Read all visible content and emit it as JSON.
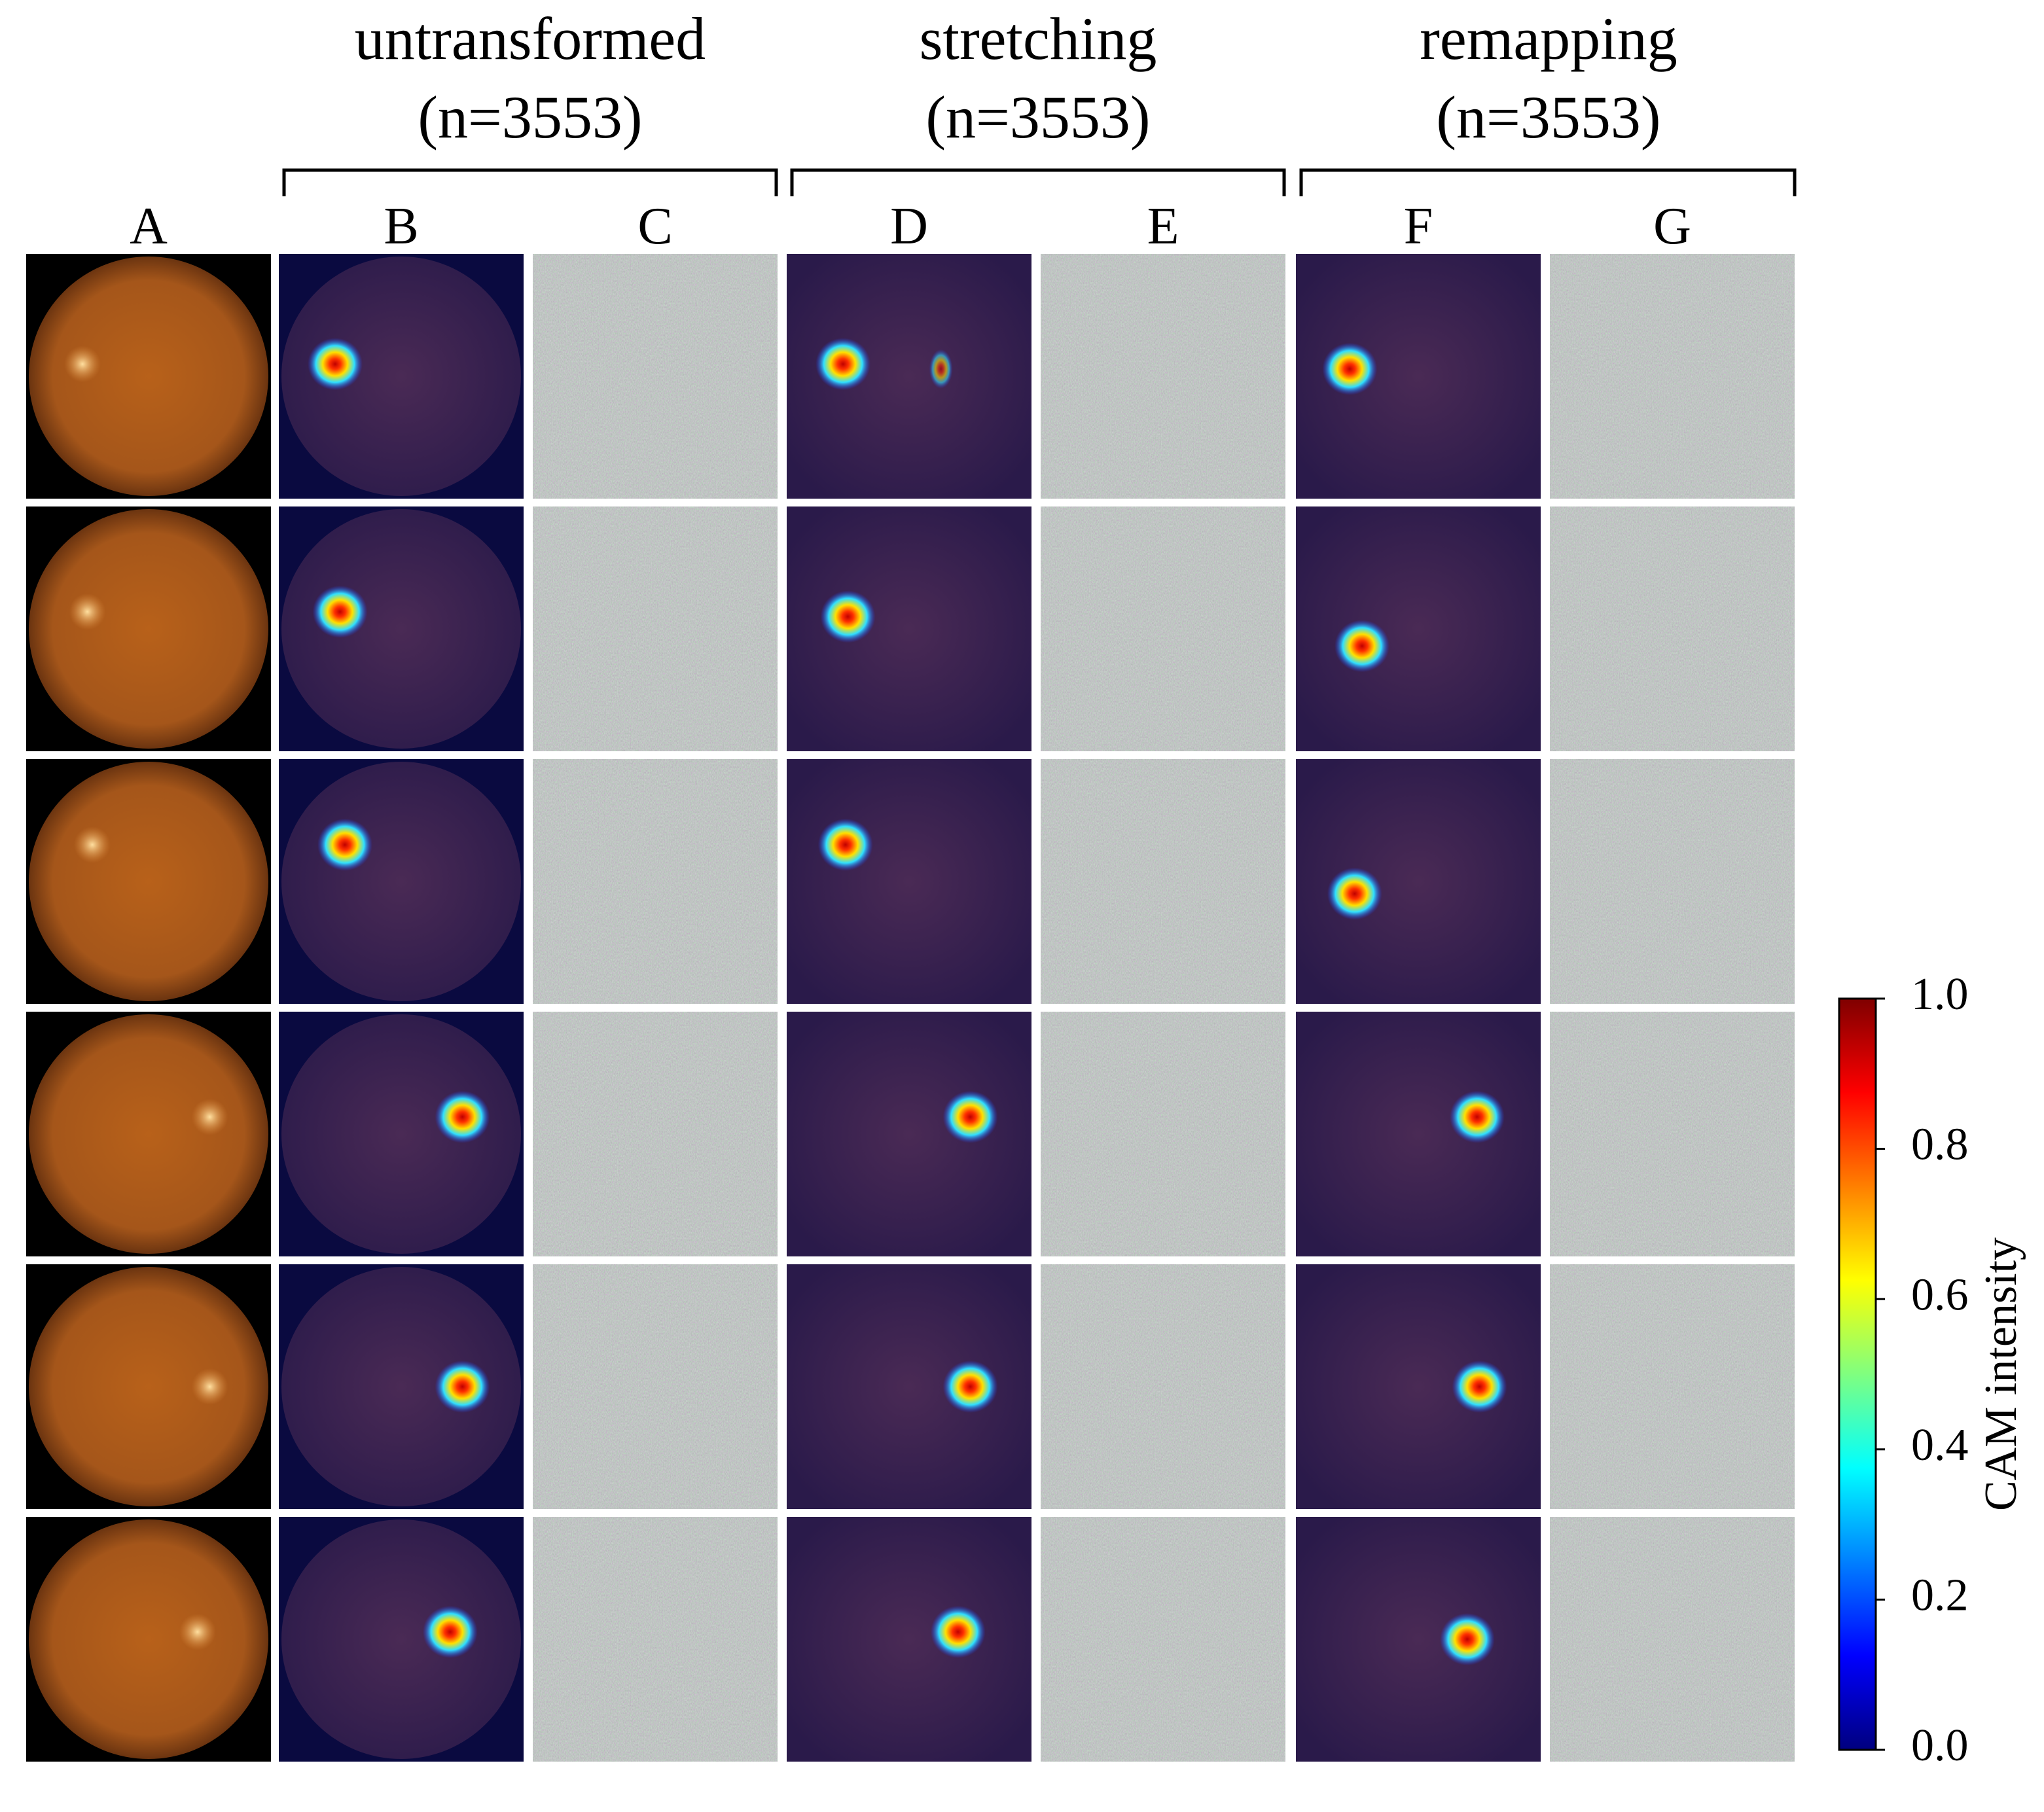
{
  "groups": [
    {
      "title": "untransformed",
      "count": "(n=3553)"
    },
    {
      "title": "stretching",
      "count": "(n=3553)"
    },
    {
      "title": "remapping",
      "count": "(n=3553)"
    }
  ],
  "columns": [
    "A",
    "B",
    "C",
    "D",
    "E",
    "F",
    "G"
  ],
  "colorbar": {
    "label": "CAM intensity",
    "lim": [
      0,
      1
    ],
    "ticks": [
      {
        "value": 0,
        "label": "0.0"
      },
      {
        "value": 0.2,
        "label": "0.2"
      },
      {
        "value": 0.4,
        "label": "0.4"
      },
      {
        "value": 0.6,
        "label": "0.6"
      },
      {
        "value": 0.8,
        "label": "0.8"
      },
      {
        "value": 1,
        "label": "1.0"
      }
    ]
  }
}
